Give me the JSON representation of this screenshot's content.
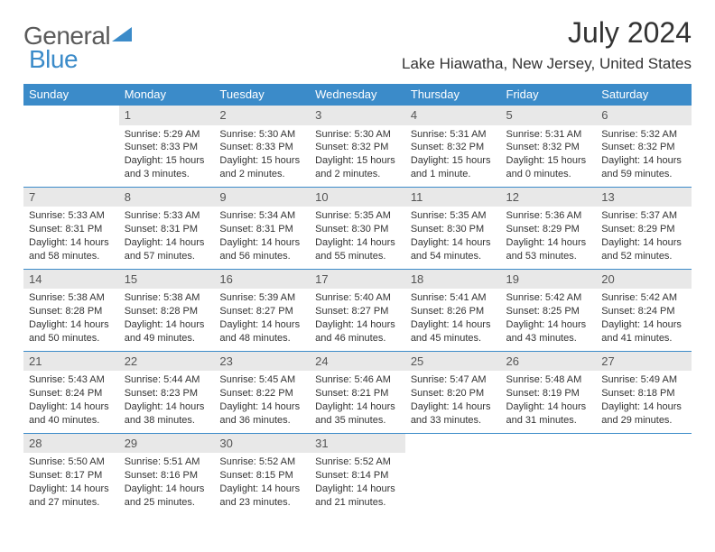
{
  "logo": {
    "text1": "General",
    "text2": "Blue",
    "color1": "#5a5a5a",
    "color2": "#3b8bc9"
  },
  "title": "July 2024",
  "location": "Lake Hiawatha, New Jersey, United States",
  "colors": {
    "header_bg": "#3b8bc9",
    "header_text": "#ffffff",
    "daynum_bg": "#e8e8e8",
    "daynum_text": "#555555",
    "divider": "#3b8bc9",
    "body_text": "#333333",
    "background": "#ffffff"
  },
  "fonts": {
    "title_size": 32,
    "location_size": 17,
    "dayheader_size": 13,
    "daynum_size": 13,
    "cell_size": 11
  },
  "day_headers": [
    "Sunday",
    "Monday",
    "Tuesday",
    "Wednesday",
    "Thursday",
    "Friday",
    "Saturday"
  ],
  "weeks": [
    [
      null,
      {
        "n": "1",
        "sr": "5:29 AM",
        "ss": "8:33 PM",
        "dl": "15 hours and 3 minutes."
      },
      {
        "n": "2",
        "sr": "5:30 AM",
        "ss": "8:33 PM",
        "dl": "15 hours and 2 minutes."
      },
      {
        "n": "3",
        "sr": "5:30 AM",
        "ss": "8:32 PM",
        "dl": "15 hours and 2 minutes."
      },
      {
        "n": "4",
        "sr": "5:31 AM",
        "ss": "8:32 PM",
        "dl": "15 hours and 1 minute."
      },
      {
        "n": "5",
        "sr": "5:31 AM",
        "ss": "8:32 PM",
        "dl": "15 hours and 0 minutes."
      },
      {
        "n": "6",
        "sr": "5:32 AM",
        "ss": "8:32 PM",
        "dl": "14 hours and 59 minutes."
      }
    ],
    [
      {
        "n": "7",
        "sr": "5:33 AM",
        "ss": "8:31 PM",
        "dl": "14 hours and 58 minutes."
      },
      {
        "n": "8",
        "sr": "5:33 AM",
        "ss": "8:31 PM",
        "dl": "14 hours and 57 minutes."
      },
      {
        "n": "9",
        "sr": "5:34 AM",
        "ss": "8:31 PM",
        "dl": "14 hours and 56 minutes."
      },
      {
        "n": "10",
        "sr": "5:35 AM",
        "ss": "8:30 PM",
        "dl": "14 hours and 55 minutes."
      },
      {
        "n": "11",
        "sr": "5:35 AM",
        "ss": "8:30 PM",
        "dl": "14 hours and 54 minutes."
      },
      {
        "n": "12",
        "sr": "5:36 AM",
        "ss": "8:29 PM",
        "dl": "14 hours and 53 minutes."
      },
      {
        "n": "13",
        "sr": "5:37 AM",
        "ss": "8:29 PM",
        "dl": "14 hours and 52 minutes."
      }
    ],
    [
      {
        "n": "14",
        "sr": "5:38 AM",
        "ss": "8:28 PM",
        "dl": "14 hours and 50 minutes."
      },
      {
        "n": "15",
        "sr": "5:38 AM",
        "ss": "8:28 PM",
        "dl": "14 hours and 49 minutes."
      },
      {
        "n": "16",
        "sr": "5:39 AM",
        "ss": "8:27 PM",
        "dl": "14 hours and 48 minutes."
      },
      {
        "n": "17",
        "sr": "5:40 AM",
        "ss": "8:27 PM",
        "dl": "14 hours and 46 minutes."
      },
      {
        "n": "18",
        "sr": "5:41 AM",
        "ss": "8:26 PM",
        "dl": "14 hours and 45 minutes."
      },
      {
        "n": "19",
        "sr": "5:42 AM",
        "ss": "8:25 PM",
        "dl": "14 hours and 43 minutes."
      },
      {
        "n": "20",
        "sr": "5:42 AM",
        "ss": "8:24 PM",
        "dl": "14 hours and 41 minutes."
      }
    ],
    [
      {
        "n": "21",
        "sr": "5:43 AM",
        "ss": "8:24 PM",
        "dl": "14 hours and 40 minutes."
      },
      {
        "n": "22",
        "sr": "5:44 AM",
        "ss": "8:23 PM",
        "dl": "14 hours and 38 minutes."
      },
      {
        "n": "23",
        "sr": "5:45 AM",
        "ss": "8:22 PM",
        "dl": "14 hours and 36 minutes."
      },
      {
        "n": "24",
        "sr": "5:46 AM",
        "ss": "8:21 PM",
        "dl": "14 hours and 35 minutes."
      },
      {
        "n": "25",
        "sr": "5:47 AM",
        "ss": "8:20 PM",
        "dl": "14 hours and 33 minutes."
      },
      {
        "n": "26",
        "sr": "5:48 AM",
        "ss": "8:19 PM",
        "dl": "14 hours and 31 minutes."
      },
      {
        "n": "27",
        "sr": "5:49 AM",
        "ss": "8:18 PM",
        "dl": "14 hours and 29 minutes."
      }
    ],
    [
      {
        "n": "28",
        "sr": "5:50 AM",
        "ss": "8:17 PM",
        "dl": "14 hours and 27 minutes."
      },
      {
        "n": "29",
        "sr": "5:51 AM",
        "ss": "8:16 PM",
        "dl": "14 hours and 25 minutes."
      },
      {
        "n": "30",
        "sr": "5:52 AM",
        "ss": "8:15 PM",
        "dl": "14 hours and 23 minutes."
      },
      {
        "n": "31",
        "sr": "5:52 AM",
        "ss": "8:14 PM",
        "dl": "14 hours and 21 minutes."
      },
      null,
      null,
      null
    ]
  ]
}
